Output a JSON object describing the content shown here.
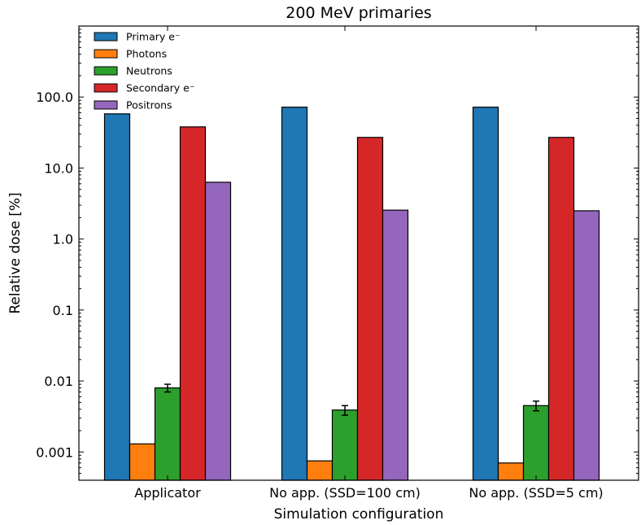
{
  "chart_data": {
    "type": "bar",
    "title": "200 MeV primaries",
    "xlabel": "Simulation configuration",
    "ylabel": "Relative dose [%]",
    "y_scale": "log",
    "ylim": [
      0.0004,
      1000
    ],
    "yticks": [
      {
        "value": 0.001,
        "label": "0.001"
      },
      {
        "value": 0.01,
        "label": "0.01"
      },
      {
        "value": 0.1,
        "label": "0.1"
      },
      {
        "value": 1,
        "label": "1.0"
      },
      {
        "value": 10,
        "label": "10.0"
      },
      {
        "value": 100,
        "label": "100.0"
      }
    ],
    "categories": [
      "Applicator",
      "No app. (SSD=100 cm)",
      "No app. (SSD=5 cm)"
    ],
    "legend_position": "top-left",
    "grid": false,
    "series": [
      {
        "name": "Primary e⁻",
        "color": "#1f77b4",
        "values": [
          58,
          72,
          72
        ]
      },
      {
        "name": "Photons",
        "color": "#ff7f0e",
        "values": [
          0.0013,
          0.00075,
          0.0007
        ]
      },
      {
        "name": "Neutrons",
        "color": "#2ca02c",
        "values": [
          0.008,
          0.0039,
          0.0045
        ],
        "errors": [
          0.001,
          0.0006,
          0.0007
        ]
      },
      {
        "name": "Secondary e⁻",
        "color": "#d62728",
        "values": [
          38,
          27,
          27
        ]
      },
      {
        "name": "Positrons",
        "color": "#9467bd",
        "values": [
          6.3,
          2.55,
          2.5
        ]
      }
    ]
  }
}
